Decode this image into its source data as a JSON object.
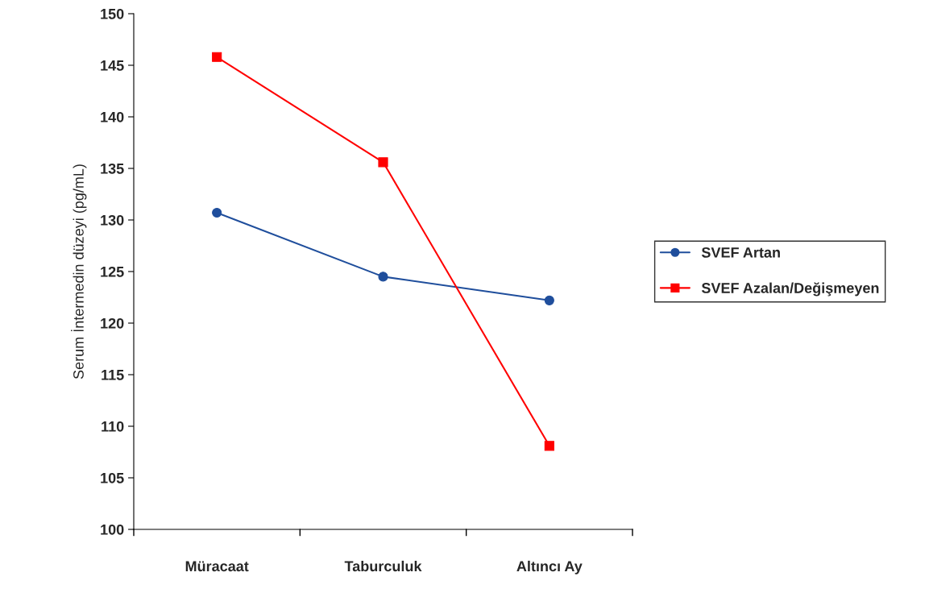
{
  "chart_data": {
    "type": "line",
    "ylabel": "Serum İntermedin düzeyi (pg/mL)",
    "categories": [
      "Müracaat",
      "Taburculuk",
      "Altıncı Ay"
    ],
    "series": [
      {
        "name": "SVEF Artan",
        "color": "#1f4e9c",
        "marker": "circle",
        "values": [
          130.7,
          124.5,
          122.2
        ]
      },
      {
        "name": "SVEF Azalan/Değişmeyen",
        "color": "#ff0000",
        "marker": "square",
        "values": [
          145.8,
          135.6,
          108.1
        ]
      }
    ],
    "ylim": [
      100,
      150
    ],
    "yticks": [
      100,
      105,
      110,
      115,
      120,
      125,
      130,
      135,
      140,
      145,
      150
    ],
    "grid": false,
    "legend": "right"
  }
}
